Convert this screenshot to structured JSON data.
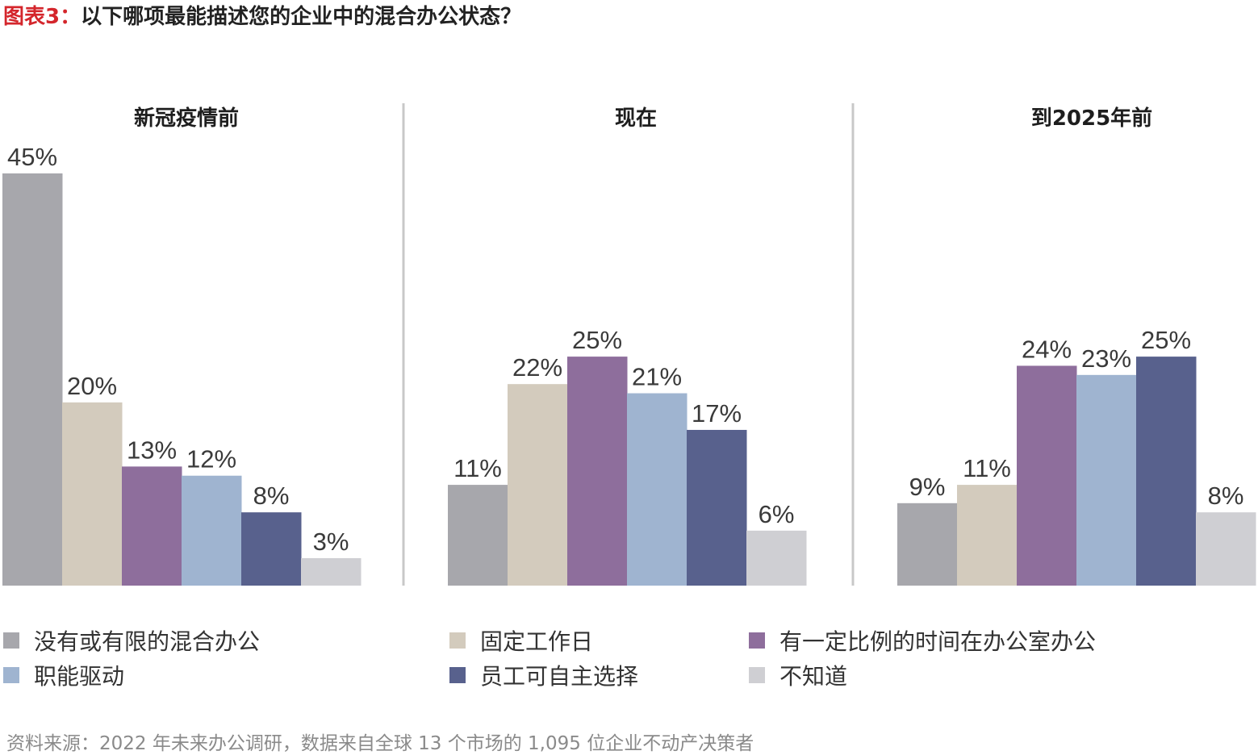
{
  "title": {
    "prefix": "图表3：",
    "text": "以下哪项最能描述您的企业中的混合办公状态？"
  },
  "colors": {
    "series": [
      "#a7a7ac",
      "#d3cbbd",
      "#8e6e9c",
      "#9fb4d0",
      "#58618d",
      "#cfcfd3"
    ],
    "divider": "#c8c8c8",
    "title_prefix": "#d4262c"
  },
  "chart_data": {
    "type": "bar",
    "ylim": [
      0,
      50
    ],
    "value_suffix": "%",
    "series": [
      {
        "name": "没有或有限的混合办公"
      },
      {
        "name": "固定工作日"
      },
      {
        "name": "有一定比例的时间在办公室办公"
      },
      {
        "name": "职能驱动"
      },
      {
        "name": "员工可自主选择"
      },
      {
        "name": "不知道"
      }
    ],
    "panels": [
      {
        "title": "新冠疫情前",
        "values": [
          45,
          20,
          13,
          12,
          8,
          3
        ]
      },
      {
        "title": "现在",
        "values": [
          11,
          22,
          25,
          21,
          17,
          6
        ]
      },
      {
        "title": "到2025年前",
        "values": [
          9,
          11,
          24,
          23,
          25,
          8
        ]
      }
    ]
  },
  "source": "资料来源：2022 年未来办公调研，数据来自全球 13 个市场的 1,095 位企业不动产决策者"
}
